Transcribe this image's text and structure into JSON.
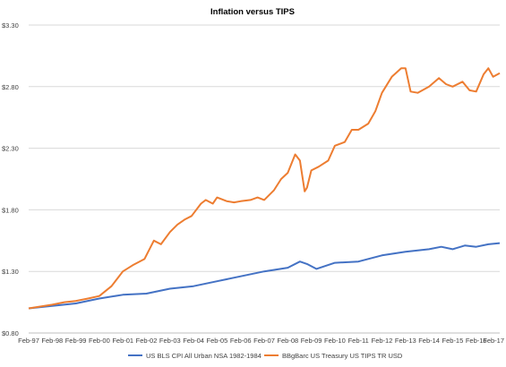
{
  "chart_data": {
    "type": "line",
    "title": "Inflation versus TIPS",
    "xlabel": "",
    "ylabel": "",
    "ylim": [
      0.8,
      3.3
    ],
    "y_ticks": [
      "$0.80",
      "$1.30",
      "$1.80",
      "$2.30",
      "$2.80",
      "$3.30"
    ],
    "y_tick_values": [
      0.8,
      1.3,
      1.8,
      2.3,
      2.8,
      3.3
    ],
    "x_range": [
      1997.083,
      2017.083
    ],
    "x_ticks": [
      "Feb-97",
      "Feb-98",
      "Feb-99",
      "Feb-00",
      "Feb-01",
      "Feb-02",
      "Feb-03",
      "Feb-04",
      "Feb-05",
      "Feb-06",
      "Feb-07",
      "Feb-08",
      "Feb-09",
      "Feb-10",
      "Feb-11",
      "Feb-12",
      "Feb-13",
      "Feb-14",
      "Feb-15",
      "Feb-16",
      "Feb-17"
    ],
    "grid": true,
    "legend_position": "bottom",
    "series": [
      {
        "name": "US BLS CPI All Urban NSA 1982-1984",
        "color": "#4472C4",
        "x": [
          1997.083,
          1998.083,
          1999.083,
          2000.083,
          2001.083,
          2002.083,
          2003.083,
          2004.083,
          2005.083,
          2006.083,
          2007.083,
          2008.083,
          2008.6,
          2008.9,
          2009.3,
          2010.083,
          2011.083,
          2012.083,
          2013.083,
          2014.083,
          2014.6,
          2015.083,
          2015.6,
          2016.083,
          2016.6,
          2017.083
        ],
        "values": [
          1.0,
          1.02,
          1.04,
          1.08,
          1.11,
          1.12,
          1.16,
          1.18,
          1.22,
          1.26,
          1.3,
          1.33,
          1.38,
          1.36,
          1.32,
          1.37,
          1.38,
          1.43,
          1.46,
          1.48,
          1.5,
          1.48,
          1.51,
          1.5,
          1.52,
          1.53
        ]
      },
      {
        "name": "BBgBarc US Treasury US TIPS TR USD",
        "color": "#ED7D31",
        "x": [
          1997.083,
          1998.083,
          1998.6,
          1999.083,
          1999.6,
          2000.083,
          2000.6,
          2001.083,
          2001.5,
          2002.0,
          2002.4,
          2002.7,
          2003.083,
          2003.4,
          2003.7,
          2004.0,
          2004.4,
          2004.6,
          2004.9,
          2005.083,
          2005.5,
          2005.8,
          2006.083,
          2006.5,
          2006.8,
          2007.083,
          2007.5,
          2007.8,
          2008.083,
          2008.4,
          2008.6,
          2008.8,
          2008.9,
          2009.083,
          2009.4,
          2009.8,
          2010.083,
          2010.5,
          2010.8,
          2011.083,
          2011.5,
          2011.8,
          2012.083,
          2012.5,
          2012.9,
          2013.083,
          2013.3,
          2013.6,
          2014.083,
          2014.5,
          2014.8,
          2015.083,
          2015.5,
          2015.8,
          2016.083,
          2016.4,
          2016.6,
          2016.8,
          2017.083
        ],
        "values": [
          1.0,
          1.03,
          1.05,
          1.06,
          1.08,
          1.1,
          1.18,
          1.3,
          1.35,
          1.4,
          1.55,
          1.52,
          1.62,
          1.68,
          1.72,
          1.75,
          1.85,
          1.88,
          1.85,
          1.9,
          1.87,
          1.86,
          1.87,
          1.88,
          1.9,
          1.88,
          1.96,
          2.05,
          2.1,
          2.25,
          2.2,
          1.95,
          1.98,
          2.12,
          2.15,
          2.2,
          2.32,
          2.35,
          2.45,
          2.45,
          2.5,
          2.6,
          2.75,
          2.88,
          2.95,
          2.95,
          2.76,
          2.75,
          2.8,
          2.87,
          2.82,
          2.8,
          2.84,
          2.77,
          2.76,
          2.9,
          2.95,
          2.88,
          2.91
        ]
      }
    ]
  }
}
